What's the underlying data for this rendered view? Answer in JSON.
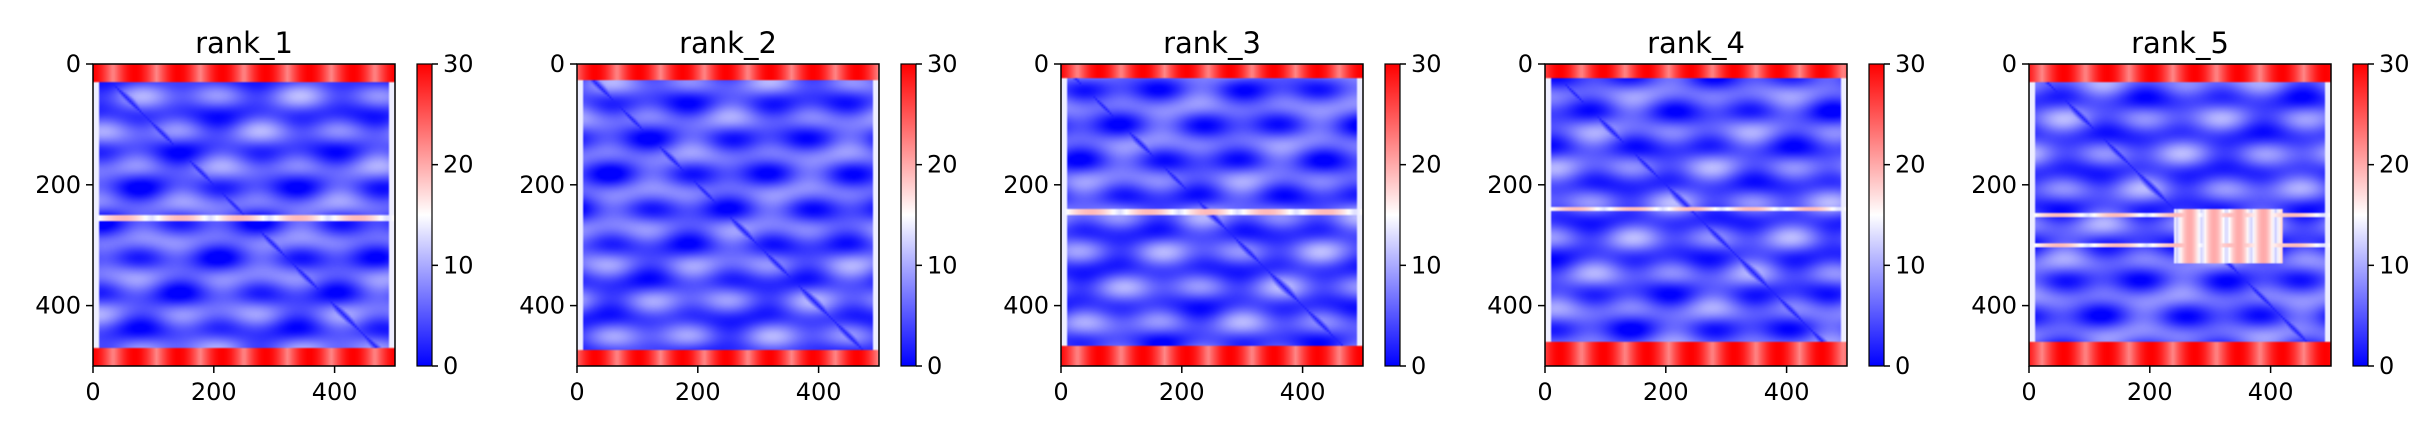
{
  "chart_data": [
    {
      "type": "heatmap",
      "title": "rank_1",
      "x_ticks": [
        "0",
        "200",
        "400"
      ],
      "y_ticks": [
        "0",
        "200",
        "400"
      ],
      "colorbar": {
        "ticks": [
          "0",
          "10",
          "20",
          "30"
        ],
        "range": [
          0,
          30
        ],
        "colormap": "bwr"
      },
      "matrix_size": 500,
      "pattern": {
        "variant": 1,
        "edge_band_rows": 30,
        "bottom_band_rows": 30,
        "high_stripes": [
          255
        ]
      }
    },
    {
      "type": "heatmap",
      "title": "rank_2",
      "x_ticks": [
        "0",
        "200",
        "400"
      ],
      "y_ticks": [
        "0",
        "200",
        "400"
      ],
      "colorbar": {
        "ticks": [
          "0",
          "10",
          "20",
          "30"
        ],
        "range": [
          0,
          30
        ],
        "colormap": "bwr"
      },
      "matrix_size": 500,
      "pattern": {
        "variant": 2,
        "edge_band_rows": 28,
        "bottom_band_rows": 28,
        "high_stripes": []
      }
    },
    {
      "type": "heatmap",
      "title": "rank_3",
      "x_ticks": [
        "0",
        "200",
        "400"
      ],
      "y_ticks": [
        "0",
        "200",
        "400"
      ],
      "colorbar": {
        "ticks": [
          "0",
          "10",
          "20",
          "30"
        ],
        "range": [
          0,
          30
        ],
        "colormap": "bwr"
      },
      "matrix_size": 500,
      "pattern": {
        "variant": 3,
        "edge_band_rows": 25,
        "bottom_band_rows": 35,
        "high_stripes": [
          245
        ]
      }
    },
    {
      "type": "heatmap",
      "title": "rank_4",
      "x_ticks": [
        "0",
        "200",
        "400"
      ],
      "y_ticks": [
        "0",
        "200",
        "400"
      ],
      "colorbar": {
        "ticks": [
          "0",
          "10",
          "20",
          "30"
        ],
        "range": [
          0,
          30
        ],
        "colormap": "bwr"
      },
      "matrix_size": 500,
      "pattern": {
        "variant": 4,
        "edge_band_rows": 25,
        "bottom_band_rows": 40,
        "high_stripes": [
          240
        ]
      }
    },
    {
      "type": "heatmap",
      "title": "rank_5",
      "x_ticks": [
        "0",
        "200",
        "400"
      ],
      "y_ticks": [
        "0",
        "200",
        "400"
      ],
      "colorbar": {
        "ticks": [
          "0",
          "10",
          "20",
          "30"
        ],
        "range": [
          0,
          30
        ],
        "colormap": "bwr"
      },
      "matrix_size": 500,
      "pattern": {
        "variant": 5,
        "edge_band_rows": 30,
        "bottom_band_rows": 40,
        "high_stripes": [
          250,
          300
        ]
      }
    }
  ]
}
